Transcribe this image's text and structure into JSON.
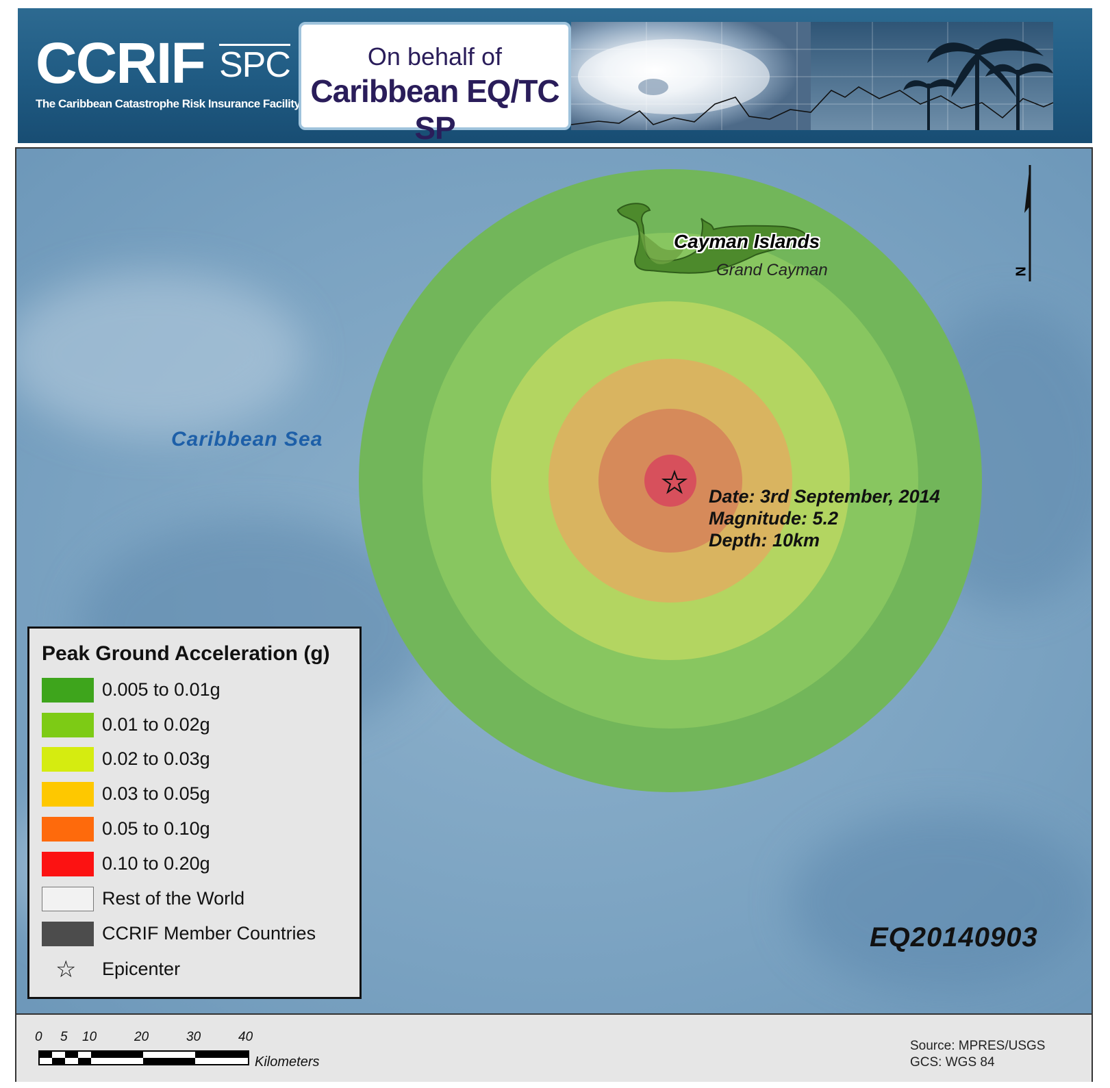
{
  "header": {
    "logo_main": "CCRIF",
    "logo_spc": "SPC",
    "logo_subtitle": "The Caribbean Catastrophe Risk Insurance Facility",
    "behalf_line1": "On behalf of",
    "behalf_line2": "Caribbean EQ/TC SP"
  },
  "map": {
    "sea_label": "Caribbean Sea",
    "island_label": "Cayman Islands",
    "island_sublabel": "Grand Cayman",
    "event": {
      "date": "Date: 3rd September, 2014",
      "magnitude": "Magnitude: 5.2",
      "depth": "Depth: 10km"
    },
    "event_code": "EQ20140903",
    "north_label": "N",
    "colors": {
      "sea": "#7fa6c4",
      "zone_005_001": "#6bb654",
      "zone_001_002": "#88c55f",
      "zone_002_003": "#b2d35d",
      "zone_003_005": "#d8b25c",
      "zone_005_010": "#d58a58",
      "zone_010_020": "#d9505a",
      "land": "#4f8a2e"
    }
  },
  "legend": {
    "title": "Peak Ground Acceleration (g)",
    "items": [
      {
        "label": "0.005 to 0.01g",
        "color": "#3ea51c"
      },
      {
        "label": "0.01 to 0.02g",
        "color": "#7dcb15"
      },
      {
        "label": "0.02 to 0.03g",
        "color": "#d5ec10"
      },
      {
        "label": "0.03 to 0.05g",
        "color": "#fec800"
      },
      {
        "label": "0.05 to 0.10g",
        "color": "#fe6a0c"
      },
      {
        "label": "0.10 to 0.20g",
        "color": "#fc1212"
      },
      {
        "label": "Rest of the World",
        "color": "#f2f2f2"
      },
      {
        "label": "CCRIF Member Countries",
        "color": "#4c4c4c"
      }
    ],
    "epicenter_label": "Epicenter",
    "epicenter_symbol": "☆"
  },
  "scale": {
    "ticks": [
      "0",
      "5",
      "10",
      "20",
      "30",
      "40"
    ],
    "unit": "Kilometers"
  },
  "source": {
    "line1": "Source: MPRES/USGS",
    "line2": "GCS: WGS 84"
  }
}
